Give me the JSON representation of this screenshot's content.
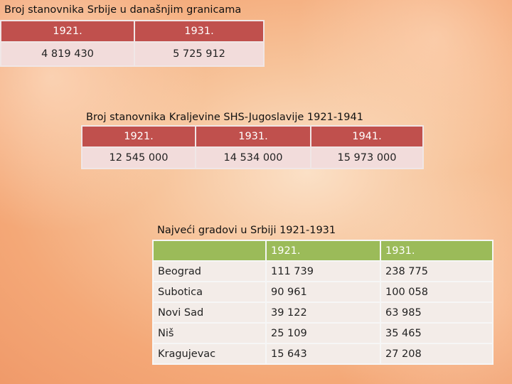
{
  "table1": {
    "caption": "Broj stanovnika Srbije u današnjim granicama",
    "headers": [
      "1921.",
      "1931."
    ],
    "values": [
      "4 819 430",
      "5 725 912"
    ]
  },
  "table2": {
    "caption": "Broj stanovnika Kraljevine SHS-Jugoslavije 1921-1941",
    "headers": [
      "1921.",
      "1931.",
      "1941."
    ],
    "values": [
      "12 545 000",
      "14 534 000",
      "15 973 000"
    ]
  },
  "table3": {
    "caption": "Najveći gradovi u Srbiji 1921-1931",
    "headers": [
      "",
      "1921.",
      "1931."
    ],
    "rows": [
      [
        "Beograd",
        "111 739",
        "238 775"
      ],
      [
        "Subotica",
        "90 961",
        "100 058"
      ],
      [
        "Novi Sad",
        "39 122",
        "63 985"
      ],
      [
        "Niš",
        "25 109",
        "35 465"
      ],
      [
        "Kragujevac",
        "15 643",
        "27 208"
      ]
    ]
  },
  "colors": {
    "red_header": "#c0504d",
    "red_row": "#f2dcdb",
    "green_header": "#9bbb59",
    "pale_row": "#f3ece8"
  }
}
